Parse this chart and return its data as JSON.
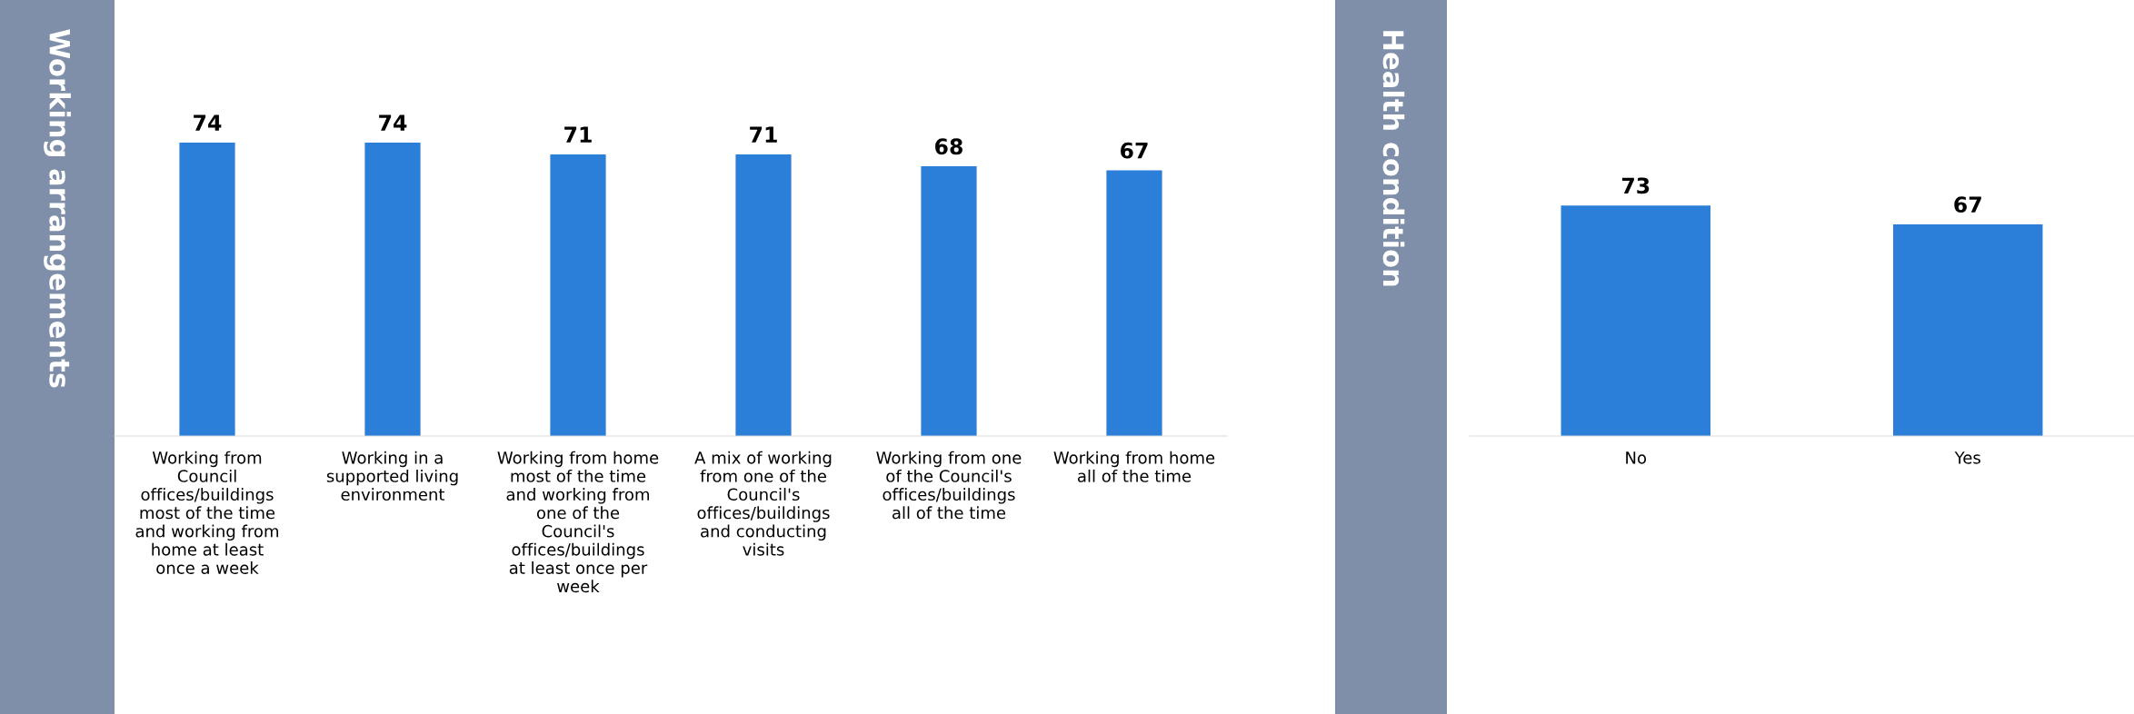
{
  "chart_data": [
    {
      "type": "bar",
      "title": "Working arrangements",
      "categories": [
        "Working from Council offices/buildings most of the time and working from home at least once a week",
        "Working in a supported living environment",
        "Working from home most of the time and working from one of the Council's offices/buildings at least once per week",
        "A mix of working from one of the Council's offices/buildings and conducting visits",
        "Working from one of the Council's offices/buildings all of the time",
        "Working from home all of the time"
      ],
      "values": [
        74,
        74,
        71,
        71,
        68,
        67
      ],
      "color": "#2b7fd9",
      "data_labels": true,
      "grid": false,
      "legend": false,
      "tick_labels": "x"
    },
    {
      "type": "bar",
      "title": "Health condition",
      "categories": [
        "No",
        "Yes"
      ],
      "values": [
        73,
        67
      ],
      "color": "#2b7fd9",
      "data_labels": true,
      "grid": false,
      "legend": false,
      "tick_labels": "x"
    }
  ]
}
